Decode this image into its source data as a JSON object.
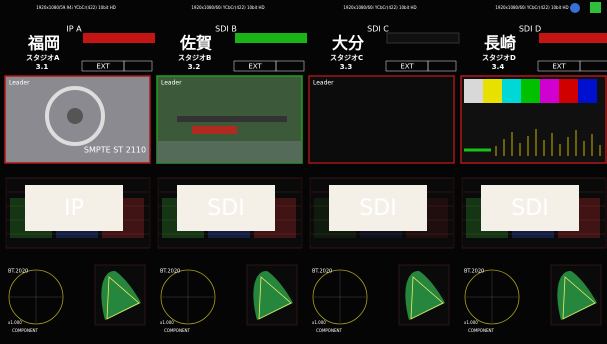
{
  "columns": [
    {
      "format": "1920x1080/59.94i YCbCr(422) 10bit HD",
      "input": "IP A",
      "city": "福岡",
      "studio": "スタジオA",
      "channel": "3.1",
      "ref": "EXT",
      "source": "Leader",
      "caption": "SMPTE ST 2110",
      "overlay": "IP",
      "gamut": "BT.2020",
      "mode": "COMPONENT",
      "zoom": "x1.000"
    },
    {
      "format": "1920x1080/60i YCbCr(422) 10bit HD",
      "input": "SDI B",
      "city": "佐賀",
      "studio": "スタジオB",
      "channel": "3.2",
      "ref": "EXT",
      "source": "Leader",
      "overlay": "SDI",
      "gamut": "BT.2020",
      "mode": "COMPONENT",
      "zoom": "x1.000"
    },
    {
      "format": "1920x1080/60i YCbCr(422) 10bit HD",
      "input": "SDI C",
      "city": "大分",
      "studio": "スタジオC",
      "channel": "3.3",
      "ref": "EXT",
      "source": "Leader",
      "overlay": "SDI",
      "gamut": "BT.2020",
      "mode": "COMPONENT",
      "zoom": "x1.000"
    },
    {
      "format": "1920x1080/60i YCbCr(422) 10bit HD",
      "input": "SDI D",
      "city": "長崎",
      "studio": "スタジオD",
      "channel": "3.4",
      "ref": "EXT",
      "overlay": "SDI",
      "gamut": "BT.2020",
      "mode": "COMPONENT",
      "zoom": "x1.000"
    }
  ]
}
